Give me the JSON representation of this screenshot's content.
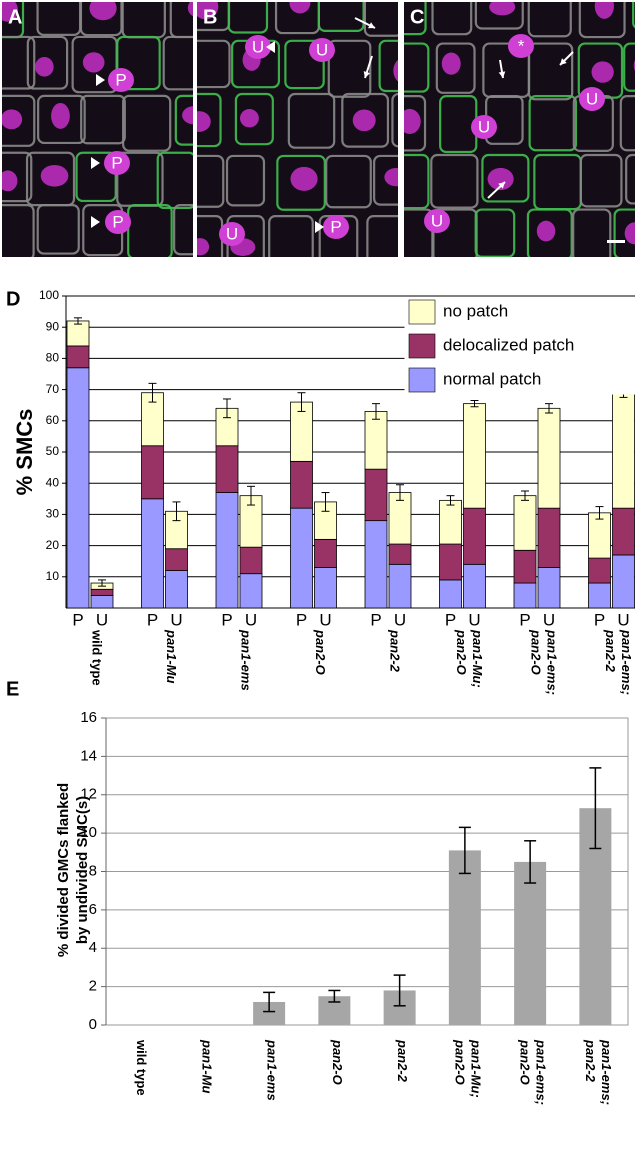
{
  "panels": [
    {
      "label": "A",
      "marks": [
        "P",
        "P",
        "P"
      ]
    },
    {
      "label": "B",
      "marks": [
        "U",
        "U",
        "U",
        "P"
      ]
    },
    {
      "label": "C",
      "marks": [
        "*",
        "U",
        "U",
        "U"
      ]
    }
  ],
  "chart_data": [
    {
      "type": "bar",
      "stacked": true,
      "panel_label": "D",
      "ylabel": "% SMCs",
      "categories": [
        "P",
        "U",
        "P",
        "U",
        "P",
        "U",
        "P",
        "U",
        "P",
        "U",
        "P",
        "U",
        "P",
        "U",
        "P",
        "U"
      ],
      "groups": [
        [
          "wild type"
        ],
        [
          "pan1-Mu"
        ],
        [
          "pan1-ems"
        ],
        [
          "pan2-O"
        ],
        [
          "pan2-2"
        ],
        [
          "pan1-Mu;",
          "pan2-O"
        ],
        [
          "pan1-ems;",
          "pan2-O"
        ],
        [
          "pan1-ems;",
          "pan2-2"
        ]
      ],
      "series": [
        {
          "name": "normal patch",
          "color": "#9999ff",
          "values": [
            77,
            4,
            35,
            12,
            37,
            11,
            32,
            13,
            28,
            14,
            9,
            14,
            8,
            13,
            8,
            17
          ]
        },
        {
          "name": "delocalized patch",
          "color": "#993366",
          "values": [
            7,
            2,
            17,
            7,
            15,
            8.5,
            15,
            9,
            16.5,
            6.5,
            11.5,
            18,
            10.5,
            19,
            8,
            15
          ]
        },
        {
          "name": "no patch",
          "color": "#ffffcc",
          "values": [
            8,
            2,
            17,
            12,
            12,
            16.5,
            19,
            12,
            18.5,
            16.5,
            14,
            33.5,
            17.5,
            32,
            14.5,
            37.5
          ]
        }
      ],
      "errors": [
        1,
        1,
        3,
        3,
        3,
        3,
        3,
        3,
        2.5,
        2.5,
        1.5,
        1,
        1.5,
        1.5,
        2,
        2
      ],
      "ylim": [
        0,
        100
      ],
      "yticks": [
        10,
        20,
        30,
        40,
        50,
        60,
        70,
        80,
        90,
        100
      ],
      "grid": true,
      "legend": "top-right"
    },
    {
      "type": "bar",
      "panel_label": "E",
      "ylabel": [
        "% divided GMCs flanked",
        "by undivided SMC(s)"
      ],
      "categories": [
        [
          "wild type"
        ],
        [
          "pan1-Mu"
        ],
        [
          "pan1-ems"
        ],
        [
          "pan2-O"
        ],
        [
          "pan2-2"
        ],
        [
          "pan1-Mu;",
          "pan2-O"
        ],
        [
          "pan1-ems;",
          "pan2-O"
        ],
        [
          "pan1-ems;",
          "pan2-2"
        ]
      ],
      "values": [
        0,
        0,
        1.2,
        1.5,
        1.8,
        9.1,
        8.5,
        11.3
      ],
      "errors": [
        null,
        null,
        0.5,
        0.3,
        0.8,
        1.2,
        1.1,
        2.1
      ],
      "color": "#a6a6a6",
      "ylim": [
        0,
        16
      ],
      "yticks": [
        0,
        2,
        4,
        6,
        8,
        10,
        12,
        14,
        16
      ],
      "grid": true
    }
  ]
}
